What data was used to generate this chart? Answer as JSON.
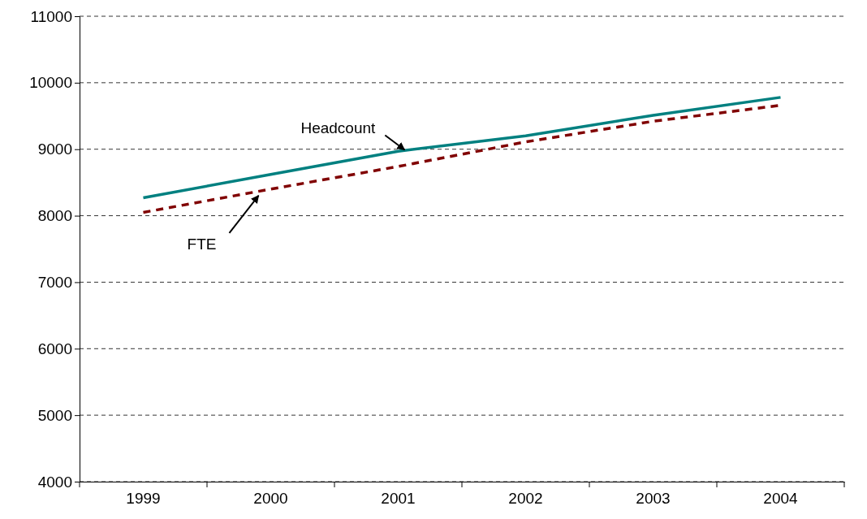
{
  "chart_data": {
    "type": "line",
    "categories": [
      "1999",
      "2000",
      "2001",
      "2002",
      "2003",
      "2004"
    ],
    "series": [
      {
        "name": "Headcount",
        "color": "#008080",
        "line_style": "solid",
        "values": [
          8270,
          8620,
          8970,
          9200,
          9510,
          9780
        ]
      },
      {
        "name": "FTE",
        "color": "#800000",
        "line_style": "dashed",
        "values": [
          8050,
          8400,
          8740,
          9110,
          9420,
          9660
        ]
      }
    ],
    "ylim": [
      4000,
      11000
    ],
    "yticks": [
      4000,
      5000,
      6000,
      7000,
      8000,
      9000,
      10000,
      11000
    ],
    "grid": "y",
    "marker": "none"
  }
}
